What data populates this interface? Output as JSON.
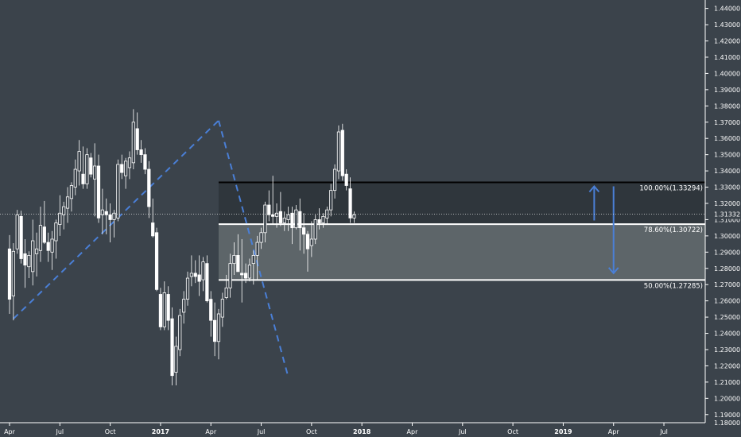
{
  "chart_data": {
    "type": "candlestick",
    "colors": {
      "background": "#3b434b",
      "bull_candle": "#ffffff",
      "bear_candle": "#ffffff",
      "trend_line": "#4a7fd6",
      "arrow": "#4a7fd6",
      "fib_line": "#ffffff",
      "fib_top_line": "#000000",
      "zone_upper": "#2f363c",
      "zone_lower": "#5d6569"
    },
    "y_axis": {
      "range": [
        1.185,
        1.4452
      ],
      "ticks": [
        "1.44000",
        "1.43000",
        "1.42000",
        "1.41000",
        "1.40000",
        "1.39000",
        "1.38000",
        "1.37000",
        "1.36000",
        "1.35000",
        "1.34000",
        "1.33000",
        "1.32000",
        "1.31000",
        "1.30000",
        "1.29000",
        "1.28000",
        "1.27000",
        "1.26000",
        "1.25000",
        "1.24000",
        "1.23000",
        "1.22000",
        "1.21000",
        "1.20000",
        "1.19000"
      ],
      "tick_values": [
        1.44,
        1.43,
        1.42,
        1.41,
        1.4,
        1.39,
        1.38,
        1.37,
        1.36,
        1.35,
        1.34,
        1.33,
        1.32,
        1.31,
        1.3,
        1.29,
        1.28,
        1.27,
        1.26,
        1.25,
        1.24,
        1.23,
        1.22,
        1.21,
        1.2,
        1.19
      ],
      "partial_bottom_label": "1.18000",
      "current_price_label": "1.31332",
      "current_price": 1.31332
    },
    "x_axis": {
      "ticks": [
        {
          "label": "Apr",
          "week": 0
        },
        {
          "label": "Jul",
          "week": 13
        },
        {
          "label": "Oct",
          "week": 26
        },
        {
          "label": "2017",
          "week": 39
        },
        {
          "label": "Apr",
          "week": 52
        },
        {
          "label": "Jul",
          "week": 65
        },
        {
          "label": "Oct",
          "week": 78
        },
        {
          "label": "2018",
          "week": 91
        },
        {
          "label": "Apr",
          "week": 104
        },
        {
          "label": "Jul",
          "week": 117
        },
        {
          "label": "Oct",
          "week": 130
        },
        {
          "label": "2019",
          "week": 143
        },
        {
          "label": "Apr",
          "week": 156
        },
        {
          "label": "Jul",
          "week": 169
        }
      ],
      "week_range": [
        -1,
        181
      ]
    },
    "fib_levels": [
      {
        "label": "100.00%(1.33294)",
        "value": 1.33294,
        "start_week": 54
      },
      {
        "label": "78.60%(1.30722)",
        "value": 1.30722,
        "start_week": 54
      },
      {
        "label": "50.00%(1.27285)",
        "value": 1.27285,
        "start_week": 54
      }
    ],
    "trend_lines": [
      [
        [
          1,
          1.249
        ],
        [
          54,
          1.371
        ]
      ],
      [
        [
          54,
          1.371
        ],
        [
          72,
          1.213
        ]
      ]
    ],
    "arrows": [
      {
        "week": 151,
        "from": 1.3095,
        "to": 1.3305
      },
      {
        "week": 156,
        "from": 1.3305,
        "to": 1.277
      }
    ],
    "candles": [
      {
        "o": 1.292,
        "h": 1.3005,
        "l": 1.252,
        "c": 1.261
      },
      {
        "o": 1.263,
        "h": 1.2955,
        "l": 1.248,
        "c": 1.2905
      },
      {
        "o": 1.292,
        "h": 1.316,
        "l": 1.289,
        "c": 1.313
      },
      {
        "o": 1.312,
        "h": 1.3155,
        "l": 1.283,
        "c": 1.286
      },
      {
        "o": 1.289,
        "h": 1.298,
        "l": 1.268,
        "c": 1.282
      },
      {
        "o": 1.281,
        "h": 1.2905,
        "l": 1.274,
        "c": 1.288
      },
      {
        "o": 1.278,
        "h": 1.31,
        "l": 1.2695,
        "c": 1.297
      },
      {
        "o": 1.289,
        "h": 1.302,
        "l": 1.275,
        "c": 1.292
      },
      {
        "o": 1.291,
        "h": 1.318,
        "l": 1.284,
        "c": 1.3065
      },
      {
        "o": 1.3055,
        "h": 1.3215,
        "l": 1.295,
        "c": 1.296
      },
      {
        "o": 1.296,
        "h": 1.302,
        "l": 1.284,
        "c": 1.291
      },
      {
        "o": 1.29,
        "h": 1.303,
        "l": 1.279,
        "c": 1.298
      },
      {
        "o": 1.297,
        "h": 1.31,
        "l": 1.286,
        "c": 1.308
      },
      {
        "o": 1.307,
        "h": 1.325,
        "l": 1.3,
        "c": 1.314
      },
      {
        "o": 1.313,
        "h": 1.321,
        "l": 1.304,
        "c": 1.318
      },
      {
        "o": 1.317,
        "h": 1.33,
        "l": 1.308,
        "c": 1.324
      },
      {
        "o": 1.323,
        "h": 1.333,
        "l": 1.315,
        "c": 1.331
      },
      {
        "o": 1.33,
        "h": 1.347,
        "l": 1.325,
        "c": 1.341
      },
      {
        "o": 1.34,
        "h": 1.359,
        "l": 1.331,
        "c": 1.352
      },
      {
        "o": 1.338,
        "h": 1.355,
        "l": 1.329,
        "c": 1.332
      },
      {
        "o": 1.332,
        "h": 1.354,
        "l": 1.329,
        "c": 1.35
      },
      {
        "o": 1.348,
        "h": 1.351,
        "l": 1.336,
        "c": 1.338
      },
      {
        "o": 1.335,
        "h": 1.357,
        "l": 1.312,
        "c": 1.343
      },
      {
        "o": 1.343,
        "h": 1.35,
        "l": 1.308,
        "c": 1.311
      },
      {
        "o": 1.313,
        "h": 1.329,
        "l": 1.301,
        "c": 1.316
      },
      {
        "o": 1.315,
        "h": 1.323,
        "l": 1.301,
        "c": 1.313
      },
      {
        "o": 1.313,
        "h": 1.32,
        "l": 1.296,
        "c": 1.31
      },
      {
        "o": 1.31,
        "h": 1.316,
        "l": 1.299,
        "c": 1.314
      },
      {
        "o": 1.311,
        "h": 1.347,
        "l": 1.309,
        "c": 1.344
      },
      {
        "o": 1.344,
        "h": 1.35,
        "l": 1.335,
        "c": 1.339
      },
      {
        "o": 1.337,
        "h": 1.348,
        "l": 1.329,
        "c": 1.346
      },
      {
        "o": 1.342,
        "h": 1.352,
        "l": 1.335,
        "c": 1.348
      },
      {
        "o": 1.345,
        "h": 1.378,
        "l": 1.341,
        "c": 1.37
      },
      {
        "o": 1.366,
        "h": 1.376,
        "l": 1.35,
        "c": 1.353
      },
      {
        "o": 1.353,
        "h": 1.359,
        "l": 1.345,
        "c": 1.35
      },
      {
        "o": 1.35,
        "h": 1.354,
        "l": 1.338,
        "c": 1.341
      },
      {
        "o": 1.341,
        "h": 1.346,
        "l": 1.311,
        "c": 1.318
      },
      {
        "o": 1.308,
        "h": 1.323,
        "l": 1.299,
        "c": 1.3
      },
      {
        "o": 1.302,
        "h": 1.305,
        "l": 1.266,
        "c": 1.267
      },
      {
        "o": 1.264,
        "h": 1.268,
        "l": 1.242,
        "c": 1.244
      },
      {
        "o": 1.244,
        "h": 1.272,
        "l": 1.242,
        "c": 1.265
      },
      {
        "o": 1.264,
        "h": 1.269,
        "l": 1.242,
        "c": 1.248
      },
      {
        "o": 1.249,
        "h": 1.256,
        "l": 1.208,
        "c": 1.214
      },
      {
        "o": 1.216,
        "h": 1.238,
        "l": 1.208,
        "c": 1.232
      },
      {
        "o": 1.23,
        "h": 1.255,
        "l": 1.226,
        "c": 1.251
      },
      {
        "o": 1.253,
        "h": 1.266,
        "l": 1.246,
        "c": 1.261
      },
      {
        "o": 1.261,
        "h": 1.278,
        "l": 1.257,
        "c": 1.274
      },
      {
        "o": 1.275,
        "h": 1.288,
        "l": 1.269,
        "c": 1.277
      },
      {
        "o": 1.277,
        "h": 1.285,
        "l": 1.271,
        "c": 1.275
      },
      {
        "o": 1.276,
        "h": 1.288,
        "l": 1.263,
        "c": 1.272
      },
      {
        "o": 1.273,
        "h": 1.287,
        "l": 1.266,
        "c": 1.284
      },
      {
        "o": 1.283,
        "h": 1.288,
        "l": 1.259,
        "c": 1.26
      },
      {
        "o": 1.261,
        "h": 1.266,
        "l": 1.238,
        "c": 1.248
      },
      {
        "o": 1.248,
        "h": 1.259,
        "l": 1.226,
        "c": 1.235
      },
      {
        "o": 1.235,
        "h": 1.255,
        "l": 1.224,
        "c": 1.252
      },
      {
        "o": 1.25,
        "h": 1.265,
        "l": 1.244,
        "c": 1.261
      },
      {
        "o": 1.262,
        "h": 1.276,
        "l": 1.261,
        "c": 1.268
      },
      {
        "o": 1.268,
        "h": 1.289,
        "l": 1.262,
        "c": 1.283
      },
      {
        "o": 1.283,
        "h": 1.296,
        "l": 1.276,
        "c": 1.288
      },
      {
        "o": 1.288,
        "h": 1.301,
        "l": 1.28,
        "c": 1.278
      },
      {
        "o": 1.277,
        "h": 1.298,
        "l": 1.259,
        "c": 1.276
      },
      {
        "o": 1.277,
        "h": 1.283,
        "l": 1.271,
        "c": 1.274
      },
      {
        "o": 1.274,
        "h": 1.286,
        "l": 1.272,
        "c": 1.282
      },
      {
        "o": 1.283,
        "h": 1.291,
        "l": 1.27,
        "c": 1.288
      },
      {
        "o": 1.288,
        "h": 1.3,
        "l": 1.273,
        "c": 1.296
      },
      {
        "o": 1.296,
        "h": 1.305,
        "l": 1.292,
        "c": 1.302
      },
      {
        "o": 1.302,
        "h": 1.321,
        "l": 1.296,
        "c": 1.319
      },
      {
        "o": 1.319,
        "h": 1.328,
        "l": 1.309,
        "c": 1.313
      },
      {
        "o": 1.313,
        "h": 1.337,
        "l": 1.307,
        "c": 1.312
      },
      {
        "o": 1.312,
        "h": 1.32,
        "l": 1.305,
        "c": 1.314
      },
      {
        "o": 1.315,
        "h": 1.327,
        "l": 1.306,
        "c": 1.308
      },
      {
        "o": 1.308,
        "h": 1.315,
        "l": 1.303,
        "c": 1.311
      },
      {
        "o": 1.31,
        "h": 1.318,
        "l": 1.303,
        "c": 1.313
      },
      {
        "o": 1.314,
        "h": 1.318,
        "l": 1.295,
        "c": 1.305
      },
      {
        "o": 1.305,
        "h": 1.319,
        "l": 1.304,
        "c": 1.316
      },
      {
        "o": 1.315,
        "h": 1.323,
        "l": 1.291,
        "c": 1.305
      },
      {
        "o": 1.305,
        "h": 1.314,
        "l": 1.289,
        "c": 1.301
      },
      {
        "o": 1.301,
        "h": 1.303,
        "l": 1.278,
        "c": 1.292
      },
      {
        "o": 1.294,
        "h": 1.309,
        "l": 1.287,
        "c": 1.298
      },
      {
        "o": 1.298,
        "h": 1.313,
        "l": 1.295,
        "c": 1.31
      },
      {
        "o": 1.31,
        "h": 1.317,
        "l": 1.304,
        "c": 1.308
      },
      {
        "o": 1.308,
        "h": 1.314,
        "l": 1.305,
        "c": 1.312
      },
      {
        "o": 1.311,
        "h": 1.318,
        "l": 1.307,
        "c": 1.316
      },
      {
        "o": 1.316,
        "h": 1.332,
        "l": 1.312,
        "c": 1.328
      },
      {
        "o": 1.328,
        "h": 1.344,
        "l": 1.323,
        "c": 1.341
      },
      {
        "o": 1.34,
        "h": 1.368,
        "l": 1.335,
        "c": 1.364
      },
      {
        "o": 1.365,
        "h": 1.369,
        "l": 1.334,
        "c": 1.337
      },
      {
        "o": 1.338,
        "h": 1.341,
        "l": 1.328,
        "c": 1.331
      },
      {
        "o": 1.329,
        "h": 1.336,
        "l": 1.308,
        "c": 1.311
      },
      {
        "o": 1.311,
        "h": 1.315,
        "l": 1.308,
        "c": 1.313
      }
    ],
    "candle_start_week": 0
  }
}
